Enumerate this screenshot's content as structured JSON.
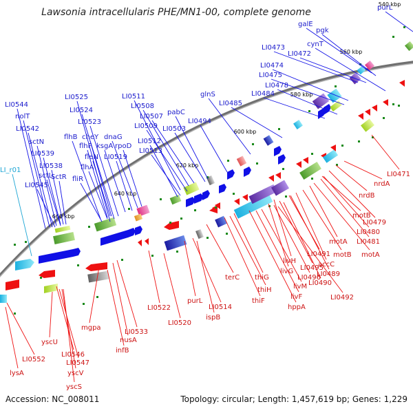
{
  "title": "Lawsonia intracellularis PHE/MN1-00, complete genome",
  "footer": {
    "accession": "Accession: NC_008011",
    "topology": "Topology: circular; Length: 1,457,619 bp; Genes: 1,229"
  },
  "ticks": [
    "540 kbp",
    "560 kbp",
    "580 kbp",
    "600 kbp",
    "620 kbp",
    "640 kbp",
    "660 kbp"
  ],
  "top_labels": [
    {
      "id": "purL",
      "text": "purL"
    },
    {
      "id": "galE",
      "text": "galE"
    },
    {
      "id": "pgk",
      "text": "pgk"
    },
    {
      "id": "LI0473",
      "text": "LI0473"
    },
    {
      "id": "cynT",
      "text": "cynT"
    },
    {
      "id": "LI0472",
      "text": "LI0472"
    },
    {
      "id": "LI0474",
      "text": "LI0474"
    },
    {
      "id": "LI0475",
      "text": "LI0475"
    },
    {
      "id": "LI0478",
      "text": "LI0478"
    },
    {
      "id": "LI0484",
      "text": "LI0484"
    },
    {
      "id": "glnS",
      "text": "glnS"
    },
    {
      "id": "LI0485",
      "text": "LI0485"
    },
    {
      "id": "LI0511",
      "text": "LI0511"
    },
    {
      "id": "LI0508",
      "text": "LI0508"
    },
    {
      "id": "pabC",
      "text": "pabC"
    },
    {
      "id": "LI0507",
      "text": "LI0507"
    },
    {
      "id": "LI0494",
      "text": "LI0494"
    },
    {
      "id": "LI0509",
      "text": "LI0509"
    },
    {
      "id": "LI0503",
      "text": "LI0503"
    },
    {
      "id": "LI0525",
      "text": "LI0525"
    },
    {
      "id": "LI0524",
      "text": "LI0524"
    },
    {
      "id": "LI0523",
      "text": "LI0523"
    },
    {
      "id": "flhB",
      "text": "flhB"
    },
    {
      "id": "cheY",
      "text": "cheY"
    },
    {
      "id": "dnaG",
      "text": "dnaG"
    },
    {
      "id": "flhF",
      "text": "flhF"
    },
    {
      "id": "ksgA",
      "text": "ksgA"
    },
    {
      "id": "rpoD",
      "text": "rpoD"
    },
    {
      "id": "fleN",
      "text": "fleN"
    },
    {
      "id": "LI0519",
      "text": "LI0519"
    },
    {
      "id": "LI0512",
      "text": "LI0512"
    },
    {
      "id": "LI0513",
      "text": "LI0513"
    },
    {
      "id": "flhA",
      "text": "flhA"
    },
    {
      "id": "fliR",
      "text": "fliR"
    },
    {
      "id": "LI0544",
      "text": "LI0544"
    },
    {
      "id": "nolT",
      "text": "nolT"
    },
    {
      "id": "LI0542",
      "text": "LI0542"
    },
    {
      "id": "sctN",
      "text": "sctN"
    },
    {
      "id": "LI0539",
      "text": "LI0539"
    },
    {
      "id": "LI0538",
      "text": "LI0538"
    },
    {
      "id": "sctL",
      "text": "sctL"
    },
    {
      "id": "SctR",
      "text": "SctR"
    },
    {
      "id": "LI0545",
      "text": "LI0545"
    },
    {
      "id": "LI_r01",
      "text": "LI_r01"
    }
  ],
  "bottom_labels": [
    {
      "id": "LI0471",
      "text": "LI0471"
    },
    {
      "id": "nrdA",
      "text": "nrdA"
    },
    {
      "id": "nrdB",
      "text": "nrdB"
    },
    {
      "id": "LI0479",
      "text": "LI0479"
    },
    {
      "id": "motB1",
      "text": "motB"
    },
    {
      "id": "LI0480",
      "text": "LI0480"
    },
    {
      "id": "LI0481",
      "text": "LI0481"
    },
    {
      "id": "motA1",
      "text": "motA"
    },
    {
      "id": "motA2",
      "text": "motA"
    },
    {
      "id": "motB2",
      "text": "motB"
    },
    {
      "id": "accC",
      "text": "accC"
    },
    {
      "id": "LI0491",
      "text": "LI0491"
    },
    {
      "id": "LI0489",
      "text": "LI0489"
    },
    {
      "id": "livH",
      "text": "livH"
    },
    {
      "id": "LI0495",
      "text": "LI0495"
    },
    {
      "id": "LI0490",
      "text": "LI0490"
    },
    {
      "id": "livG",
      "text": "livG"
    },
    {
      "id": "LI0496",
      "text": "LI0496"
    },
    {
      "id": "LI0492",
      "text": "LI0492"
    },
    {
      "id": "livM",
      "text": "livM"
    },
    {
      "id": "livF",
      "text": "livF"
    },
    {
      "id": "hppA",
      "text": "hppA"
    },
    {
      "id": "thiG",
      "text": "thiG"
    },
    {
      "id": "thiH",
      "text": "thiH"
    },
    {
      "id": "thiF",
      "text": "thiF"
    },
    {
      "id": "terC",
      "text": "terC"
    },
    {
      "id": "LI0514",
      "text": "LI0514"
    },
    {
      "id": "purL2",
      "text": "purL"
    },
    {
      "id": "ispB",
      "text": "ispB"
    },
    {
      "id": "LI0522",
      "text": "LI0522"
    },
    {
      "id": "LI0520",
      "text": "LI0520"
    },
    {
      "id": "LI0533",
      "text": "LI0533"
    },
    {
      "id": "nusA",
      "text": "nusA"
    },
    {
      "id": "mgpa",
      "text": "mgpa"
    },
    {
      "id": "infB",
      "text": "infB"
    },
    {
      "id": "LI0546",
      "text": "LI0546"
    },
    {
      "id": "LI0547",
      "text": "LI0547"
    },
    {
      "id": "yscU",
      "text": "yscU"
    },
    {
      "id": "LI0552",
      "text": "LI0552"
    },
    {
      "id": "yscV",
      "text": "yscV"
    },
    {
      "id": "yscS",
      "text": "yscS"
    },
    {
      "id": "lysA",
      "text": "lysA"
    }
  ],
  "colors": {
    "backbone": "#808080",
    "forward_gene": "#1010e6",
    "reverse_gene": "#ee1111",
    "rna_gene": "#1ca5d4",
    "tick_marks": "#1a8a1a"
  }
}
